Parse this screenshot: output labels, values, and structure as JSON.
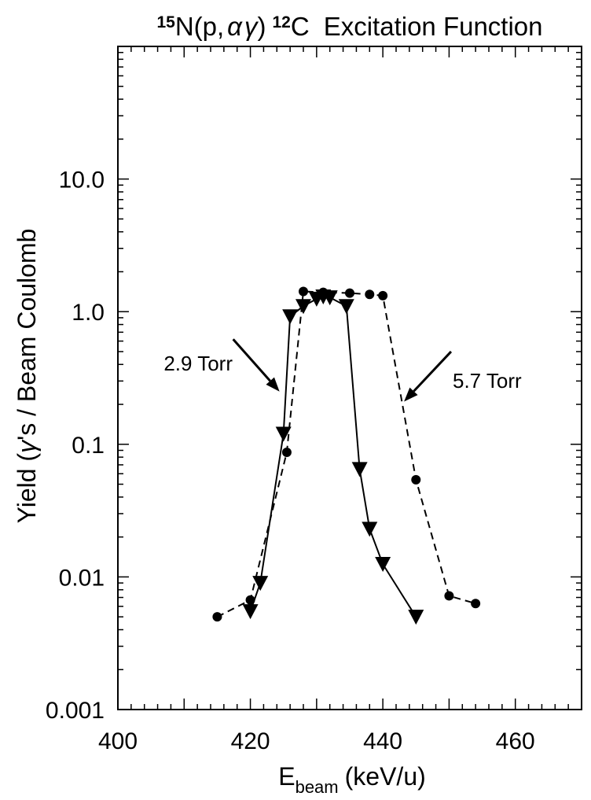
{
  "chart_data": {
    "type": "scatter",
    "title": {
      "mass_n": "15",
      "reaction": "N(p,",
      "alpha": "α",
      "gamma": "γ",
      "close": ")",
      "mass_c": "12",
      "product": "C",
      "suffix": "Excitation Function"
    },
    "xlabel": {
      "main": "E",
      "sub": "beam",
      "unit": "(keV/u)"
    },
    "ylabel": {
      "prefix": "Yield (",
      "gamma": "γ",
      "rest": "'s / Beam Coulomb"
    },
    "xlim": [
      400,
      470
    ],
    "ylim": [
      0.001,
      100
    ],
    "yscale": "log",
    "x_ticks": [
      400,
      420,
      440,
      460
    ],
    "x_tick_labels": [
      "400",
      "420",
      "440",
      "460"
    ],
    "y_ticks": [
      0.001,
      0.01,
      0.1,
      1,
      10
    ],
    "y_tick_labels": [
      "0.001",
      "0.01",
      "0.1",
      "1.0",
      "10.0"
    ],
    "grid": false,
    "series": [
      {
        "marker": "triangle-down",
        "line": "solid",
        "x": [
          420,
          421.5,
          425,
          426,
          428,
          430,
          431,
          432,
          434.5,
          436.5,
          438,
          440,
          445
        ],
        "y": [
          0.0055,
          0.009,
          0.12,
          0.92,
          1.1,
          1.25,
          1.3,
          1.28,
          1.1,
          0.065,
          0.023,
          0.0125,
          0.005
        ]
      },
      {
        "marker": "circle",
        "line": "dashed",
        "x": [
          415,
          420,
          425.5,
          428,
          431,
          435,
          438,
          440,
          445,
          450,
          454
        ],
        "y": [
          0.005,
          0.0067,
          0.087,
          1.42,
          1.4,
          1.38,
          1.35,
          1.32,
          0.054,
          0.0072,
          0.0063
        ]
      }
    ],
    "annotations": [
      {
        "text": "2.9 Torr",
        "target": [
          424.4,
          0.25
        ],
        "anchor": [
          417.4,
          0.62
        ]
      },
      {
        "text": "5.7 Torr",
        "target": [
          443.2,
          0.21
        ],
        "anchor": [
          450.3,
          0.5
        ]
      }
    ]
  }
}
